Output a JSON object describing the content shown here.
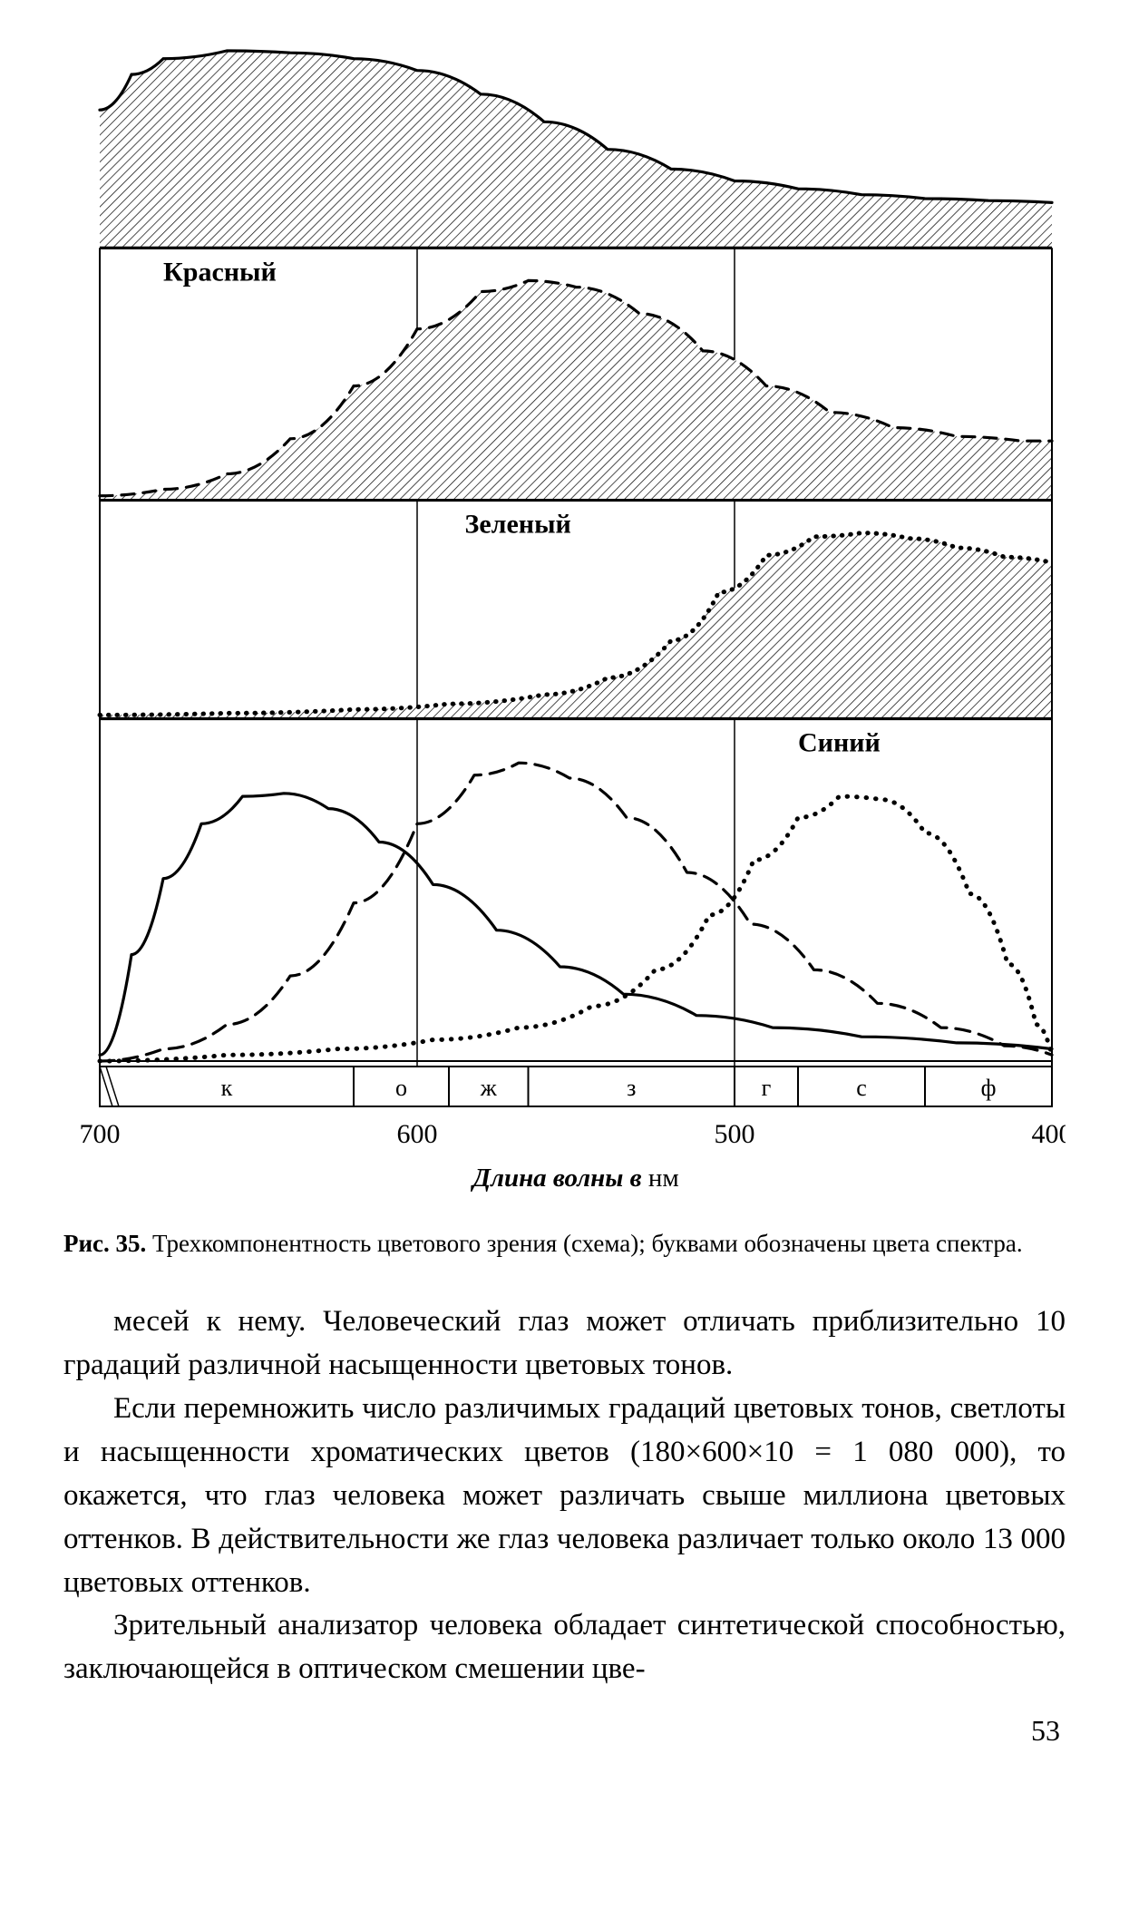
{
  "figure": {
    "type": "area + line (stacked panels)",
    "stroke_color": "#000000",
    "background_color": "#ffffff",
    "hatch_spacing": 7,
    "hatch_angle_deg": 45,
    "line_width": 2.2,
    "bold_line_width": 3.2,
    "x_domain_nm": [
      700,
      400
    ],
    "x_ticks_nm": [
      700,
      600,
      500,
      400
    ],
    "x_tick_labels": [
      "700",
      "600",
      "500",
      "400"
    ],
    "vertical_gridlines_nm": [
      700,
      600,
      500,
      400
    ],
    "panels": [
      {
        "name": "red-receptor",
        "label": "Красный",
        "label_pos_nm": 680,
        "fill": "hatched",
        "outline_dash": null,
        "height_rel": 0.18,
        "points_nm_y": [
          [
            700,
            0.7
          ],
          [
            690,
            0.88
          ],
          [
            680,
            0.96
          ],
          [
            660,
            1.0
          ],
          [
            640,
            0.99
          ],
          [
            620,
            0.96
          ],
          [
            600,
            0.9
          ],
          [
            580,
            0.78
          ],
          [
            560,
            0.64
          ],
          [
            540,
            0.5
          ],
          [
            520,
            0.4
          ],
          [
            500,
            0.34
          ],
          [
            480,
            0.3
          ],
          [
            460,
            0.27
          ],
          [
            440,
            0.25
          ],
          [
            420,
            0.24
          ],
          [
            400,
            0.23
          ]
        ]
      },
      {
        "name": "green-receptor",
        "label": "Зеленый",
        "label_pos_nm": 585,
        "fill": "hatched",
        "outline_dash": "14 10",
        "height_rel": 0.2,
        "points_nm_y": [
          [
            700,
            0.02
          ],
          [
            680,
            0.05
          ],
          [
            660,
            0.12
          ],
          [
            640,
            0.28
          ],
          [
            620,
            0.52
          ],
          [
            600,
            0.78
          ],
          [
            580,
            0.95
          ],
          [
            565,
            1.0
          ],
          [
            550,
            0.97
          ],
          [
            530,
            0.85
          ],
          [
            510,
            0.68
          ],
          [
            490,
            0.52
          ],
          [
            470,
            0.4
          ],
          [
            450,
            0.33
          ],
          [
            430,
            0.29
          ],
          [
            410,
            0.27
          ],
          [
            400,
            0.27
          ]
        ]
      },
      {
        "name": "blue-receptor",
        "label": "Синий",
        "label_pos_nm": 480,
        "fill": "hatched",
        "outline_style": "dotted",
        "height_rel": 0.17,
        "points_nm_y": [
          [
            700,
            0.02
          ],
          [
            660,
            0.03
          ],
          [
            620,
            0.05
          ],
          [
            590,
            0.08
          ],
          [
            560,
            0.13
          ],
          [
            540,
            0.22
          ],
          [
            520,
            0.42
          ],
          [
            505,
            0.68
          ],
          [
            490,
            0.88
          ],
          [
            475,
            0.98
          ],
          [
            460,
            1.0
          ],
          [
            445,
            0.97
          ],
          [
            430,
            0.92
          ],
          [
            415,
            0.87
          ],
          [
            400,
            0.84
          ]
        ]
      },
      {
        "name": "combined",
        "height_rel": 0.28,
        "series": [
          {
            "name": "red-line",
            "dash": null,
            "points_nm_y": [
              [
                700,
                0.02
              ],
              [
                690,
                0.35
              ],
              [
                680,
                0.6
              ],
              [
                668,
                0.78
              ],
              [
                655,
                0.87
              ],
              [
                642,
                0.88
              ],
              [
                628,
                0.83
              ],
              [
                612,
                0.72
              ],
              [
                595,
                0.58
              ],
              [
                575,
                0.43
              ],
              [
                555,
                0.31
              ],
              [
                535,
                0.22
              ],
              [
                512,
                0.15
              ],
              [
                488,
                0.11
              ],
              [
                460,
                0.08
              ],
              [
                430,
                0.06
              ],
              [
                400,
                0.04
              ]
            ]
          },
          {
            "name": "green-line",
            "dash": "16 10",
            "points_nm_y": [
              [
                700,
                0.0
              ],
              [
                680,
                0.04
              ],
              [
                660,
                0.12
              ],
              [
                640,
                0.28
              ],
              [
                620,
                0.52
              ],
              [
                600,
                0.78
              ],
              [
                582,
                0.94
              ],
              [
                568,
                0.98
              ],
              [
                552,
                0.93
              ],
              [
                534,
                0.8
              ],
              [
                515,
                0.62
              ],
              [
                495,
                0.45
              ],
              [
                475,
                0.3
              ],
              [
                455,
                0.19
              ],
              [
                435,
                0.11
              ],
              [
                415,
                0.05
              ],
              [
                400,
                0.02
              ]
            ]
          },
          {
            "name": "blue-line",
            "dash_style": "dotted",
            "points_nm_y": [
              [
                700,
                0.0
              ],
              [
                660,
                0.02
              ],
              [
                625,
                0.04
              ],
              [
                595,
                0.07
              ],
              [
                568,
                0.11
              ],
              [
                545,
                0.18
              ],
              [
                525,
                0.3
              ],
              [
                508,
                0.48
              ],
              [
                494,
                0.66
              ],
              [
                480,
                0.8
              ],
              [
                467,
                0.87
              ],
              [
                454,
                0.86
              ],
              [
                440,
                0.75
              ],
              [
                426,
                0.55
              ],
              [
                414,
                0.32
              ],
              [
                405,
                0.12
              ],
              [
                400,
                0.02
              ]
            ]
          }
        ]
      }
    ],
    "spectrum_bands": [
      {
        "code": "к",
        "end_nm": 620
      },
      {
        "code": "о",
        "end_nm": 590
      },
      {
        "code": "ж",
        "end_nm": 565
      },
      {
        "code": "з",
        "end_nm": 500
      },
      {
        "code": "г",
        "end_nm": 480
      },
      {
        "code": "с",
        "end_nm": 440
      },
      {
        "code": "ф",
        "end_nm": 400
      }
    ],
    "axis_title_prefix": "Длина волны в",
    "axis_title_unit": "нм"
  },
  "caption": {
    "fig_label": "Рис. 35.",
    "text": "Трехкомпонентность цветового зрения (схема); буквами обозначены цвета спектра."
  },
  "body": {
    "p1": "месей к нему. Человеческий глаз может отличать приблизительно 10 градаций различной насыщенности цветовых тонов.",
    "p2": "Если перемножить число различимых градаций цветовых тонов, светлоты и насыщенности хроматических цветов (180×600×10 = 1 080 000), то окажется, что глаз человека может различать свыше миллиона цветовых оттенков. В действительности же глаз человека различает только около 13 000 цветовых оттенков.",
    "p3": "Зрительный анализатор человека обладает синтетической способностью, заключающейся в оптическом смешении цве-"
  },
  "page_number": "53"
}
